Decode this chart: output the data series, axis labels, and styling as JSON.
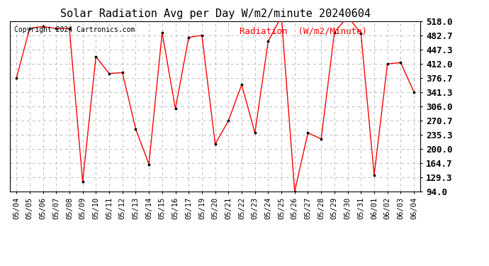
{
  "title": "Solar Radiation Avg per Day W/m2/minute 20240604",
  "copyright": "Copyright 2024 Cartronics.com",
  "legend_label": "Radiation  (W/m2/Minute)",
  "dates": [
    "05/04",
    "05/05",
    "05/06",
    "05/07",
    "05/08",
    "05/09",
    "05/10",
    "05/11",
    "05/12",
    "05/13",
    "05/14",
    "05/15",
    "05/16",
    "05/17",
    "05/19",
    "05/20",
    "05/21",
    "05/22",
    "05/23",
    "05/24",
    "05/25",
    "05/26",
    "05/27",
    "05/28",
    "05/29",
    "05/30",
    "05/31",
    "06/01",
    "06/02",
    "06/03",
    "06/04"
  ],
  "values": [
    376.7,
    500.0,
    505.0,
    500.0,
    500.0,
    118.0,
    430.0,
    388.0,
    390.0,
    250.0,
    162.0,
    490.0,
    300.0,
    478.0,
    483.0,
    212.0,
    270.0,
    360.0,
    240.0,
    468.0,
    530.0,
    94.0,
    240.0,
    225.0,
    490.0,
    530.0,
    488.0,
    135.0,
    412.0,
    415.0,
    342.0
  ],
  "ylim_min": 94.0,
  "ylim_max": 518.0,
  "yticks": [
    94.0,
    129.3,
    164.7,
    200.0,
    235.3,
    270.7,
    306.0,
    341.3,
    376.7,
    412.0,
    447.3,
    482.7,
    518.0
  ],
  "line_color": "red",
  "marker_color": "black",
  "marker": ".",
  "bg_color": "white",
  "grid_color": "#bbbbbb",
  "title_fontsize": 11,
  "copyright_fontsize": 7,
  "legend_fontsize": 9,
  "tick_fontsize": 7.5,
  "ytick_fontsize": 9
}
